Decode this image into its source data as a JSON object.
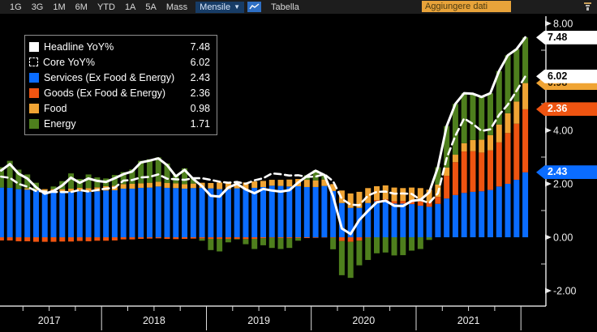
{
  "toolbar": {
    "period_tabs": [
      "1G",
      "3G",
      "1M",
      "6M",
      "YTD",
      "1A",
      "5A",
      "Mass"
    ],
    "frequency_dropdown": {
      "label": "Mensile",
      "caret": "▼"
    },
    "table_tab_label": "Tabella",
    "add_data_button_label": "Aggiungere dati"
  },
  "legend": {
    "items": [
      {
        "label": "Headline YoY%",
        "value": "7.48",
        "swatch": "white-solid"
      },
      {
        "label": "Core YoY%",
        "value": "6.02",
        "swatch": "white-dashed-outline"
      },
      {
        "label": "Services (Ex Food & Energy)",
        "value": "2.43",
        "swatch": "blue"
      },
      {
        "label": "Goods (Ex Food & Energy)",
        "value": "2.36",
        "swatch": "orange-red"
      },
      {
        "label": "Food",
        "value": "0.98",
        "swatch": "amber"
      },
      {
        "label": "Energy",
        "value": "1.71",
        "swatch": "green"
      }
    ]
  },
  "colors": {
    "background": "#000000",
    "toolbar_bg": "#1d1d1d",
    "services_blue": "#0a6cff",
    "goods_orange_red": "#ef5411",
    "food_amber": "#f0a434",
    "energy_green": "#4e7f1d",
    "line_white": "#ffffff",
    "accent_amber_button": "#e8a33a",
    "axis_text": "#eeeeee"
  },
  "chart_data": {
    "type": "bar",
    "subtype": "stacked-bars-with-overlay-lines",
    "months": [
      "2017-01",
      "2017-02",
      "2017-03",
      "2017-04",
      "2017-05",
      "2017-06",
      "2017-07",
      "2017-08",
      "2017-09",
      "2017-10",
      "2017-11",
      "2017-12",
      "2018-01",
      "2018-02",
      "2018-03",
      "2018-04",
      "2018-05",
      "2018-06",
      "2018-07",
      "2018-08",
      "2018-09",
      "2018-10",
      "2018-11",
      "2018-12",
      "2019-01",
      "2019-02",
      "2019-03",
      "2019-04",
      "2019-05",
      "2019-06",
      "2019-07",
      "2019-08",
      "2019-09",
      "2019-10",
      "2019-11",
      "2019-12",
      "2020-01",
      "2020-02",
      "2020-03",
      "2020-04",
      "2020-05",
      "2020-06",
      "2020-07",
      "2020-08",
      "2020-09",
      "2020-10",
      "2020-11",
      "2020-12",
      "2021-01",
      "2021-02",
      "2021-03",
      "2021-04",
      "2021-05",
      "2021-06",
      "2021-07",
      "2021-08",
      "2021-09",
      "2021-10",
      "2021-11",
      "2021-12",
      "2022-01"
    ],
    "series": [
      {
        "name": "Services (Ex Food & Energy)",
        "type": "bar",
        "color": "#0a6cff",
        "last_value": 2.43,
        "values": [
          1.86,
          1.85,
          1.8,
          1.78,
          1.75,
          1.73,
          1.72,
          1.7,
          1.7,
          1.72,
          1.7,
          1.72,
          1.75,
          1.76,
          1.82,
          1.82,
          1.85,
          1.86,
          1.9,
          1.85,
          1.84,
          1.82,
          1.84,
          1.85,
          1.83,
          1.8,
          1.8,
          1.83,
          1.8,
          1.85,
          1.88,
          1.93,
          1.92,
          1.9,
          1.91,
          1.88,
          1.88,
          1.92,
          1.73,
          1.28,
          1.1,
          1.1,
          1.28,
          1.34,
          1.32,
          1.26,
          1.26,
          1.24,
          1.18,
          1.14,
          1.25,
          1.45,
          1.58,
          1.66,
          1.7,
          1.72,
          1.77,
          1.9,
          2.0,
          2.15,
          2.43
        ]
      },
      {
        "name": "Goods (Ex Food & Energy)",
        "type": "bar",
        "color": "#ef5411",
        "last_value": 2.36,
        "values": [
          -0.12,
          -0.12,
          -0.15,
          -0.15,
          -0.17,
          -0.17,
          -0.17,
          -0.16,
          -0.16,
          -0.14,
          -0.15,
          -0.13,
          -0.13,
          -0.12,
          -0.08,
          -0.08,
          -0.06,
          -0.05,
          -0.04,
          -0.06,
          -0.07,
          -0.06,
          -0.05,
          -0.05,
          -0.06,
          -0.06,
          -0.06,
          -0.06,
          -0.07,
          -0.06,
          -0.04,
          -0.02,
          -0.03,
          -0.04,
          -0.03,
          -0.03,
          -0.02,
          -0.01,
          -0.02,
          -0.14,
          -0.17,
          -0.13,
          -0.02,
          0.05,
          0.1,
          0.09,
          0.1,
          0.11,
          0.16,
          0.17,
          0.26,
          0.85,
          1.23,
          1.55,
          1.52,
          1.45,
          1.48,
          1.65,
          1.9,
          2.1,
          2.36
        ]
      },
      {
        "name": "Food",
        "type": "bar",
        "color": "#f0a434",
        "last_value": 0.98,
        "values": [
          0.0,
          0.0,
          0.0,
          0.05,
          0.05,
          0.07,
          0.08,
          0.1,
          0.12,
          0.13,
          0.14,
          0.15,
          0.16,
          0.17,
          0.17,
          0.18,
          0.17,
          0.18,
          0.18,
          0.18,
          0.18,
          0.17,
          0.17,
          0.19,
          0.2,
          0.25,
          0.25,
          0.25,
          0.25,
          0.24,
          0.23,
          0.22,
          0.23,
          0.26,
          0.27,
          0.27,
          0.25,
          0.24,
          0.26,
          0.47,
          0.54,
          0.6,
          0.56,
          0.52,
          0.52,
          0.51,
          0.48,
          0.51,
          0.5,
          0.47,
          0.46,
          0.31,
          0.28,
          0.31,
          0.42,
          0.48,
          0.57,
          0.67,
          0.74,
          0.83,
          0.98
        ]
      },
      {
        "name": "Energy",
        "type": "bar",
        "color": "#4e7f1d",
        "last_value": 1.71,
        "values": [
          0.76,
          1.01,
          0.73,
          0.52,
          0.24,
          0.0,
          0.1,
          0.3,
          0.57,
          0.33,
          0.51,
          0.37,
          0.29,
          0.4,
          0.45,
          0.54,
          0.84,
          0.88,
          0.91,
          0.73,
          0.33,
          0.59,
          0.22,
          -0.08,
          -0.42,
          -0.47,
          -0.13,
          -0.02,
          -0.19,
          -0.38,
          -0.26,
          -0.38,
          -0.41,
          -0.36,
          -0.1,
          0.17,
          0.38,
          0.18,
          -0.43,
          -1.28,
          -1.35,
          -0.92,
          -0.83,
          -0.6,
          -0.57,
          -0.68,
          -0.67,
          -0.5,
          -0.44,
          -0.1,
          0.65,
          1.55,
          1.9,
          1.87,
          1.73,
          1.6,
          1.57,
          2.0,
          2.17,
          1.96,
          1.71
        ]
      },
      {
        "name": "Headline YoY%",
        "type": "line",
        "style": "solid",
        "color": "#ffffff",
        "last_value": 7.48,
        "values": [
          2.5,
          2.74,
          2.38,
          2.2,
          1.87,
          1.63,
          1.73,
          1.94,
          2.23,
          2.04,
          2.2,
          2.11,
          2.07,
          2.21,
          2.36,
          2.46,
          2.8,
          2.87,
          2.95,
          2.7,
          2.28,
          2.52,
          2.18,
          1.91,
          1.55,
          1.52,
          1.86,
          2.0,
          1.79,
          1.65,
          1.81,
          1.75,
          1.71,
          1.76,
          2.05,
          2.29,
          2.49,
          2.33,
          1.54,
          0.33,
          0.12,
          0.65,
          0.99,
          1.31,
          1.37,
          1.18,
          1.17,
          1.36,
          1.4,
          1.68,
          2.62,
          4.16,
          4.99,
          5.39,
          5.37,
          5.25,
          5.39,
          6.22,
          6.81,
          7.04,
          7.48
        ]
      },
      {
        "name": "Core YoY%",
        "type": "line",
        "style": "dashed",
        "color": "#ffffff",
        "last_value": 6.02,
        "values": [
          2.27,
          2.22,
          2.0,
          1.89,
          1.73,
          1.71,
          1.7,
          1.69,
          1.69,
          1.77,
          1.71,
          1.77,
          1.82,
          1.85,
          2.12,
          2.14,
          2.24,
          2.26,
          2.35,
          2.19,
          2.17,
          2.15,
          2.21,
          2.21,
          2.15,
          2.08,
          2.04,
          2.07,
          2.0,
          2.13,
          2.21,
          2.39,
          2.36,
          2.31,
          2.32,
          2.26,
          2.27,
          2.36,
          2.1,
          1.44,
          1.22,
          1.2,
          1.56,
          1.7,
          1.71,
          1.63,
          1.64,
          1.62,
          1.4,
          1.28,
          1.65,
          2.96,
          3.8,
          4.45,
          4.24,
          3.98,
          4.04,
          4.58,
          4.96,
          5.48,
          6.02
        ]
      }
    ],
    "y_axis": {
      "side": "right",
      "range": [
        -2.9,
        8.6
      ],
      "major_ticks": [
        {
          "v": 8,
          "label": "8.00"
        },
        {
          "v": 6,
          "label": "6.00"
        },
        {
          "v": 4,
          "label": "4.00"
        },
        {
          "v": 2,
          "label": "2.00"
        },
        {
          "v": 0,
          "label": "0.00"
        },
        {
          "v": -2,
          "label": "-2.00"
        }
      ],
      "minor_ticks": [
        7,
        5,
        3,
        1,
        -1
      ]
    },
    "x_axis": {
      "year_labels": [
        "2017",
        "2018",
        "2019",
        "2020",
        "2021"
      ]
    },
    "last_value_markers": [
      {
        "label": "7.48",
        "at": 7.48,
        "bg": "#ffffff",
        "fg": "#000000"
      },
      {
        "label": "0.98",
        "at": 5.77,
        "bg": "#f0a434",
        "fg": "#2b1d00"
      },
      {
        "label": "6.02",
        "at": 6.02,
        "bg": "#ffffff",
        "fg": "#000000"
      },
      {
        "label": "2.36",
        "at": 4.79,
        "bg": "#ef5411",
        "fg": "#ffffff"
      },
      {
        "label": "2.43",
        "at": 2.43,
        "bg": "#0a6cff",
        "fg": "#ffffff"
      }
    ],
    "legend_position": "top-left",
    "grid": false
  }
}
